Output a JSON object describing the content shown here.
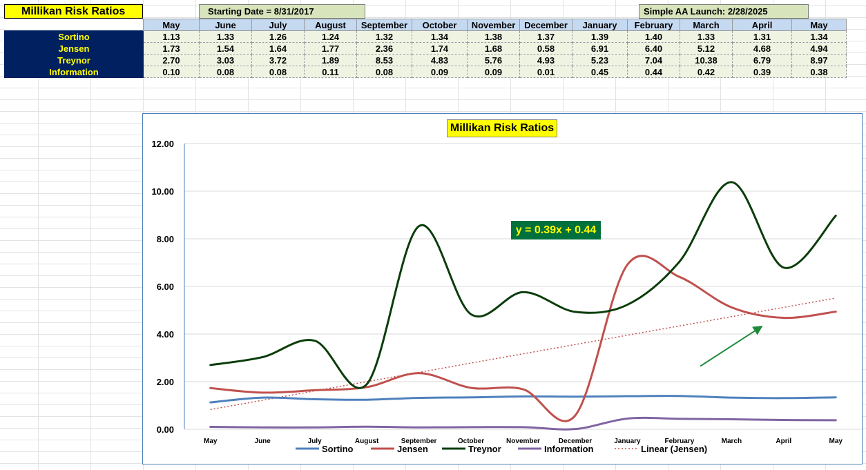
{
  "header": {
    "title": "Millikan Risk Ratios",
    "starting_date": "Starting Date = 8/31/2017",
    "launch": "Simple AA Launch: 2/28/2025"
  },
  "table": {
    "months": [
      "May",
      "June",
      "July",
      "August",
      "September",
      "October",
      "November",
      "December",
      "January",
      "February",
      "March",
      "April",
      "May"
    ],
    "rows": [
      {
        "label": "Sortino",
        "values": [
          "1.13",
          "1.33",
          "1.26",
          "1.24",
          "1.32",
          "1.34",
          "1.38",
          "1.37",
          "1.39",
          "1.40",
          "1.33",
          "1.31",
          "1.34"
        ]
      },
      {
        "label": "Jensen",
        "values": [
          "1.73",
          "1.54",
          "1.64",
          "1.77",
          "2.36",
          "1.74",
          "1.68",
          "0.58",
          "6.91",
          "6.40",
          "5.12",
          "4.68",
          "4.94"
        ]
      },
      {
        "label": "Treynor",
        "values": [
          "2.70",
          "3.03",
          "3.72",
          "1.89",
          "8.53",
          "4.83",
          "5.76",
          "4.93",
          "5.23",
          "7.04",
          "10.38",
          "6.79",
          "8.97"
        ]
      },
      {
        "label": "Information",
        "values": [
          "0.10",
          "0.08",
          "0.08",
          "0.11",
          "0.08",
          "0.09",
          "0.09",
          "0.01",
          "0.45",
          "0.44",
          "0.42",
          "0.39",
          "0.38"
        ]
      }
    ]
  },
  "chart_data": {
    "type": "line",
    "title": "Millikan Risk Ratios",
    "categories": [
      "May",
      "June",
      "July",
      "August",
      "September",
      "October",
      "November",
      "December",
      "January",
      "February",
      "March",
      "April",
      "May"
    ],
    "series": [
      {
        "name": "Sortino",
        "color": "#4f81bd",
        "values": [
          1.13,
          1.33,
          1.26,
          1.24,
          1.32,
          1.34,
          1.38,
          1.37,
          1.39,
          1.4,
          1.33,
          1.31,
          1.34
        ]
      },
      {
        "name": "Jensen",
        "color": "#c0504d",
        "values": [
          1.73,
          1.54,
          1.64,
          1.77,
          2.36,
          1.74,
          1.68,
          0.58,
          6.91,
          6.4,
          5.12,
          4.68,
          4.94
        ]
      },
      {
        "name": "Treynor",
        "color": "#0b3d0b",
        "values": [
          2.7,
          3.03,
          3.72,
          1.89,
          8.53,
          4.83,
          5.76,
          4.93,
          5.23,
          7.04,
          10.38,
          6.79,
          8.97
        ]
      },
      {
        "name": "Information",
        "color": "#8064a2",
        "values": [
          0.1,
          0.08,
          0.08,
          0.11,
          0.08,
          0.09,
          0.09,
          0.01,
          0.45,
          0.44,
          0.42,
          0.39,
          0.38
        ]
      }
    ],
    "trendline": {
      "name": "Linear (Jensen)",
      "of": "Jensen",
      "equation": "y = 0.39x + 0.44",
      "slope": 0.39,
      "intercept": 0.44,
      "color": "#c0504d"
    },
    "ylim": [
      0,
      12
    ],
    "yticks": [
      "0.00",
      "2.00",
      "4.00",
      "6.00",
      "8.00",
      "10.00",
      "12.00"
    ],
    "grid": "horizontal",
    "legend": "bottom",
    "arrow": {
      "color": "#1e8a3c",
      "from": [
        9.9,
        2.65
      ],
      "to": [
        11.1,
        4.35
      ]
    }
  }
}
